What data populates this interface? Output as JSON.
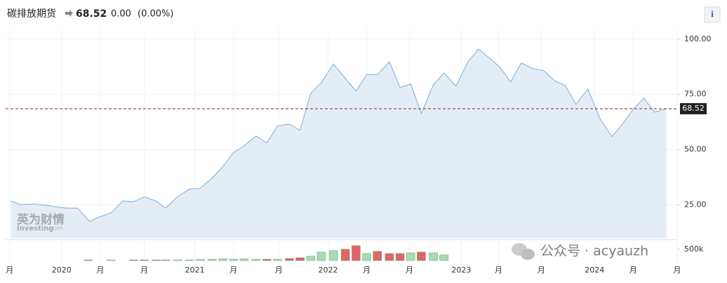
{
  "header": {
    "info": "i"
  },
  "watermarks": {
    "logo_cn": "英为财情",
    "logo_en": "Investing",
    "logo_dom": ".com",
    "wechat": "公众号 · acyauzh"
  },
  "chart_data": {
    "type": "area",
    "title": "碳排放期货",
    "last_price": 68.52,
    "change": "0.00",
    "change_pct": "(0.00%)",
    "color": "#7aaedb",
    "fill": "#e4edf6",
    "price_line_color": "#9b1c1c",
    "grid": true,
    "xlim": [
      2019.58,
      2024.62
    ],
    "xticks": [
      {
        "value": 2019.61,
        "label": "月"
      },
      {
        "value": 2020,
        "label": "2020"
      },
      {
        "value": 2020.29,
        "label": "月"
      },
      {
        "value": 2020.62,
        "label": "月"
      },
      {
        "value": 2021,
        "label": "2021"
      },
      {
        "value": 2021.29,
        "label": "月"
      },
      {
        "value": 2021.63,
        "label": "月"
      },
      {
        "value": 2022,
        "label": "2022"
      },
      {
        "value": 2022.29,
        "label": "月"
      },
      {
        "value": 2022.61,
        "label": "月"
      },
      {
        "value": 2023,
        "label": "2023"
      },
      {
        "value": 2023.28,
        "label": "月"
      },
      {
        "value": 2023.6,
        "label": "月"
      },
      {
        "value": 2024,
        "label": "2024"
      },
      {
        "value": 2024.29,
        "label": "月"
      },
      {
        "value": 2024.62,
        "label": "月"
      }
    ],
    "ylim": [
      10,
      105
    ],
    "yticks": [
      {
        "value": 25,
        "label": "25.00"
      },
      {
        "value": 50,
        "label": "50.00"
      },
      {
        "value": 75,
        "label": "75.00"
      },
      {
        "value": 100,
        "label": "100.00"
      }
    ],
    "x": [
      2019.62,
      2019.69,
      2019.79,
      2019.88,
      2019.96,
      2020.04,
      2020.12,
      2020.21,
      2020.28,
      2020.37,
      2020.46,
      2020.54,
      2020.62,
      2020.71,
      2020.78,
      2020.87,
      2020.96,
      2021.04,
      2021.13,
      2021.21,
      2021.29,
      2021.37,
      2021.46,
      2021.54,
      2021.62,
      2021.71,
      2021.79,
      2021.87,
      2021.95,
      2022.04,
      2022.13,
      2022.21,
      2022.29,
      2022.37,
      2022.46,
      2022.54,
      2022.62,
      2022.7,
      2022.79,
      2022.87,
      2022.96,
      2023.05,
      2023.13,
      2023.21,
      2023.29,
      2023.37,
      2023.45,
      2023.54,
      2023.62,
      2023.7,
      2023.78,
      2023.86,
      2023.95,
      2024.04,
      2024.13,
      2024.21,
      2024.29,
      2024.37,
      2024.45,
      2024.54
    ],
    "values": [
      26.8,
      25.2,
      25.5,
      24.9,
      24.2,
      23.6,
      23.6,
      17.6,
      19.5,
      21.4,
      26.8,
      26.5,
      28.7,
      26.8,
      23.6,
      28.7,
      32.2,
      32.5,
      37.2,
      42.3,
      48.6,
      51.8,
      56.2,
      53.1,
      60.7,
      61.6,
      58.8,
      75.5,
      80.3,
      88.8,
      82.2,
      76.5,
      84.1,
      83.8,
      89.8,
      78.1,
      79.7,
      66.4,
      79.3,
      84.7,
      78.7,
      89.8,
      95.5,
      91.4,
      87.3,
      80.6,
      89.2,
      86.6,
      85.7,
      81.2,
      79,
      70.5,
      77.4,
      64.1,
      55.9,
      61.6,
      68.3,
      73.3,
      67,
      68.52
    ],
    "volume": {
      "ylim": [
        0,
        800000
      ],
      "yticks": [
        {
          "value": 500000,
          "label": "500k"
        }
      ],
      "x": [
        2020.2,
        2020.37,
        2020.54,
        2020.62,
        2020.71,
        2020.78,
        2020.87,
        2020.96,
        2021.04,
        2021.13,
        2021.21,
        2021.29,
        2021.37,
        2021.46,
        2021.54,
        2021.62,
        2021.71,
        2021.79,
        2021.87,
        2021.95,
        2022.04,
        2022.13,
        2022.21,
        2022.29,
        2022.37,
        2022.46,
        2022.54,
        2022.62,
        2022.7,
        2022.79,
        2022.87
      ],
      "values": [
        30000,
        30000,
        30000,
        30000,
        30000,
        30000,
        30000,
        30000,
        47000,
        60000,
        78000,
        60000,
        78000,
        60000,
        60000,
        60000,
        94000,
        125000,
        190000,
        375000,
        440000,
        500000,
        656000,
        310000,
        406000,
        310000,
        310000,
        340000,
        375000,
        340000,
        250000
      ],
      "colors": [
        "#e06666",
        "#a8dbb5",
        "#e06666",
        "#e06666",
        "#e06666",
        "#e06666",
        "#a8dbb5",
        "#a8dbb5",
        "#a8dbb5",
        "#a8dbb5",
        "#a8dbb5",
        "#a8dbb5",
        "#a8dbb5",
        "#a8dbb5",
        "#e06666",
        "#a8dbb5",
        "#e06666",
        "#e06666",
        "#a8dbb5",
        "#a8dbb5",
        "#a8dbb5",
        "#e06666",
        "#e06666",
        "#a8dbb5",
        "#e06666",
        "#e06666",
        "#e06666",
        "#a8dbb5",
        "#e06666",
        "#a8dbb5",
        "#a8dbb5"
      ]
    }
  }
}
